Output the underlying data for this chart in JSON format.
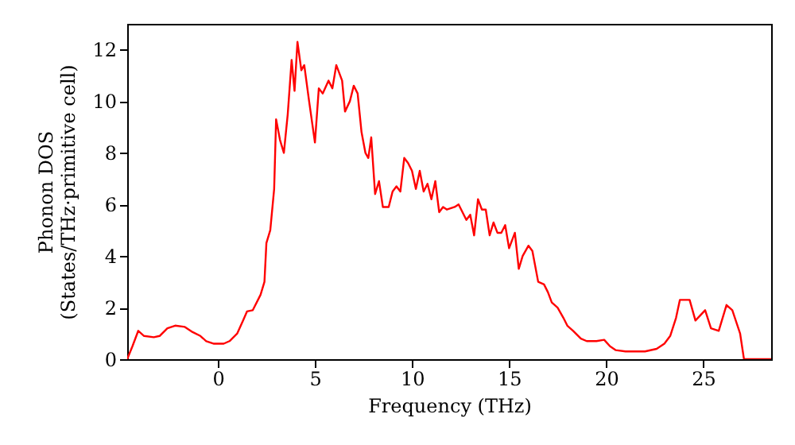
{
  "chart_data": {
    "type": "line",
    "xlabel": "Frequency (THz)",
    "ylabel": "Phonon DOS\n(States/THz·primitive cell)",
    "xlim": [
      -4.67,
      28.5
    ],
    "ylim": [
      0,
      13
    ],
    "xticks": [
      0,
      5,
      10,
      15,
      20,
      25
    ],
    "yticks": [
      0,
      2,
      4,
      6,
      8,
      10,
      12
    ],
    "grid": false,
    "marker": "none",
    "line_style": "solid",
    "series": [
      {
        "color": "#ff0000",
        "x": [
          -4.67,
          -4.4,
          -4.1,
          -3.8,
          -3.3,
          -3.0,
          -2.6,
          -2.2,
          -1.7,
          -1.3,
          -0.9,
          -0.6,
          -0.2,
          0.3,
          0.6,
          1.0,
          1.3,
          1.5,
          1.8,
          2.2,
          2.4,
          2.5,
          2.7,
          2.9,
          3.0,
          3.2,
          3.4,
          3.6,
          3.8,
          3.95,
          4.1,
          4.3,
          4.45,
          4.7,
          5.0,
          5.2,
          5.4,
          5.7,
          5.9,
          6.1,
          6.4,
          6.55,
          6.8,
          7.0,
          7.2,
          7.4,
          7.6,
          7.75,
          7.9,
          8.1,
          8.3,
          8.5,
          8.8,
          9.0,
          9.2,
          9.4,
          9.6,
          9.8,
          10.0,
          10.2,
          10.4,
          10.6,
          10.8,
          11.0,
          11.2,
          11.4,
          11.6,
          11.8,
          12.2,
          12.4,
          12.8,
          13.0,
          13.2,
          13.4,
          13.6,
          13.8,
          14.0,
          14.2,
          14.4,
          14.6,
          14.8,
          15.0,
          15.3,
          15.5,
          15.7,
          16.0,
          16.2,
          16.5,
          16.8,
          17.0,
          17.2,
          17.5,
          17.8,
          18.0,
          18.3,
          18.7,
          19.0,
          19.5,
          19.9,
          20.2,
          20.5,
          21.0,
          22.0,
          22.6,
          23.0,
          23.3,
          23.6,
          23.8,
          24.3,
          24.6,
          25.1,
          25.4,
          25.8,
          26.2,
          26.5,
          26.9,
          27.1,
          28.5
        ],
        "values": [
          0,
          0.5,
          1.1,
          0.9,
          0.85,
          0.9,
          1.2,
          1.3,
          1.25,
          1.05,
          0.9,
          0.7,
          0.6,
          0.6,
          0.7,
          1.0,
          1.5,
          1.85,
          1.9,
          2.5,
          3.0,
          4.5,
          5.0,
          6.6,
          9.3,
          8.5,
          8.0,
          9.5,
          11.6,
          10.4,
          12.3,
          11.2,
          11.4,
          10.0,
          8.4,
          10.5,
          10.3,
          10.8,
          10.5,
          11.4,
          10.8,
          9.6,
          10.0,
          10.6,
          10.3,
          8.8,
          8.0,
          7.8,
          8.6,
          6.4,
          6.9,
          5.9,
          5.9,
          6.5,
          6.7,
          6.5,
          7.8,
          7.6,
          7.3,
          6.6,
          7.3,
          6.5,
          6.8,
          6.2,
          6.9,
          5.7,
          5.9,
          5.8,
          5.9,
          6.0,
          5.4,
          5.6,
          4.8,
          6.2,
          5.8,
          5.8,
          4.8,
          5.3,
          4.9,
          4.9,
          5.2,
          4.3,
          4.9,
          3.5,
          4.0,
          4.4,
          4.2,
          3.0,
          2.9,
          2.6,
          2.2,
          2.0,
          1.6,
          1.3,
          1.1,
          0.8,
          0.7,
          0.7,
          0.75,
          0.5,
          0.35,
          0.3,
          0.3,
          0.4,
          0.6,
          0.9,
          1.6,
          2.3,
          2.3,
          1.5,
          1.9,
          1.2,
          1.1,
          2.1,
          1.9,
          1.0,
          0,
          0
        ]
      }
    ]
  }
}
